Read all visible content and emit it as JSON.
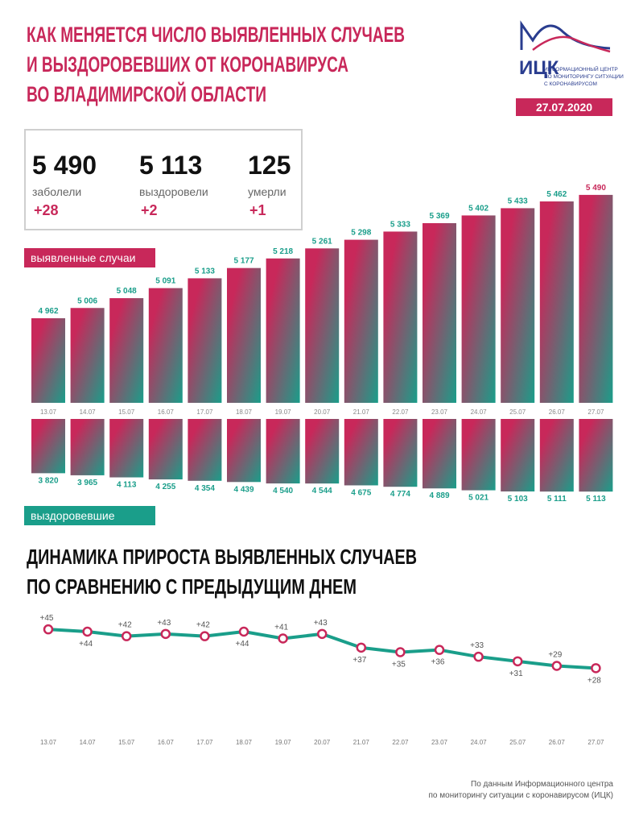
{
  "header": {
    "title": [
      "КАК МЕНЯЕТСЯ ЧИСЛО ВЫЯВЛЕННЫХ СЛУЧАЕВ",
      "И ВЫЗДОРОВЕВШИХ ОТ КОРОНАВИРУСА",
      "ВО ВЛАДИМИРСКОЙ ОБЛАСТИ"
    ],
    "date": "27.07.2020"
  },
  "logo": {
    "name": "ИЦК",
    "text": [
      "ИНФОРМАЦИОННЫЙ ЦЕНТР",
      "ПО МОНИТОРИНГУ СИТУАЦИИ",
      "С КОРОНАВИРУСОМ"
    ]
  },
  "stats": [
    {
      "value": "5 490",
      "label": "заболели",
      "change": "+28"
    },
    {
      "value": "5 113",
      "label": "выздоровели",
      "change": "+2"
    },
    {
      "value": "125",
      "label": "умерли",
      "change": "+1"
    }
  ],
  "chart_data": [
    {
      "type": "bar",
      "name": "выявленные случаи",
      "direction": "up",
      "colors": [
        "#c8285a",
        "#1a9e8a"
      ],
      "categories": [
        "13.07",
        "14.07",
        "15.07",
        "16.07",
        "17.07",
        "18.07",
        "19.07",
        "20.07",
        "21.07",
        "22.07",
        "23.07",
        "24.07",
        "25.07",
        "26.07",
        "27.07"
      ],
      "values": [
        4962,
        5006,
        5048,
        5091,
        5133,
        5177,
        5218,
        5261,
        5298,
        5333,
        5369,
        5402,
        5433,
        5462,
        5490
      ],
      "value_labels": [
        "4 962",
        "5 006",
        "5 048",
        "5 091",
        "5 133",
        "5 177",
        "5 218",
        "5 261",
        "5 298",
        "5 333",
        "5 369",
        "5 402",
        "5 433",
        "5 462",
        "5 490"
      ],
      "ylim": [
        4600,
        5500
      ]
    },
    {
      "type": "bar",
      "name": "выздоровевшие",
      "direction": "down",
      "colors": [
        "#c8285a",
        "#1a9e8a"
      ],
      "values": [
        3820,
        3965,
        4113,
        4255,
        4354,
        4439,
        4540,
        4544,
        4675,
        4774,
        4889,
        5021,
        5103,
        5111,
        5113
      ],
      "value_labels": [
        "3 820",
        "3 965",
        "4 113",
        "4 255",
        "4 354",
        "4 439",
        "4 540",
        "4 544",
        "4 675",
        "4 774",
        "4 889",
        "5 021",
        "5 103",
        "5 111",
        "5 113"
      ],
      "ylim": [
        0,
        5500
      ]
    },
    {
      "type": "line",
      "title": [
        "ДИНАМИКА ПРИРОСТА ВЫЯВЛЕННЫХ СЛУЧАЕВ",
        "ПО СРАВНЕНИЮ С ПРЕДЫДУЩИМ ДНЕМ"
      ],
      "color": "#1a9e8a",
      "marker_color": "#c8285a",
      "categories": [
        "13.07",
        "14.07",
        "15.07",
        "16.07",
        "17.07",
        "18.07",
        "19.07",
        "20.07",
        "21.07",
        "22.07",
        "23.07",
        "24.07",
        "25.07",
        "26.07",
        "27.07"
      ],
      "values": [
        45,
        44,
        42,
        43,
        42,
        44,
        41,
        43,
        37,
        35,
        36,
        33,
        31,
        29,
        28
      ],
      "value_labels": [
        "+45",
        "+44",
        "+42",
        "+43",
        "+42",
        "+44",
        "+41",
        "+43",
        "+37",
        "+35",
        "+36",
        "+33",
        "+31",
        "+29",
        "+28"
      ],
      "ylim": [
        20,
        50
      ]
    }
  ],
  "source": [
    "По данным Информационного центра",
    "по мониторингу ситуации с коронавирусом (ИЦК)"
  ]
}
